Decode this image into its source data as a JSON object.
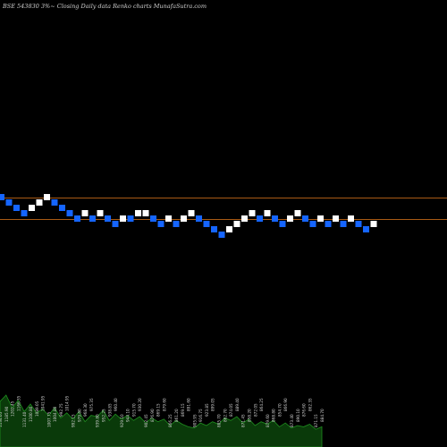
{
  "header": {
    "title": "BSE 543830 3%~ Closing Daily data Renko charts MunafaSutra.com"
  },
  "colors": {
    "background": "#000000",
    "up_brick": "#ffffff",
    "down_brick": "#1565ff",
    "reference_line": "#a85a14",
    "volume_fill": "#0a3a0a",
    "volume_stroke": "#1f8f1f"
  },
  "chart_data": {
    "type": "renko",
    "title": "BSE 543830 3%~ Closing Daily data Renko charts MunafaSutra.com",
    "brick_size": "3%",
    "reference_levels": [
      "upper",
      "lower"
    ],
    "bricks": [
      {
        "dir": "down",
        "level": 0
      },
      {
        "dir": "down",
        "level": -1
      },
      {
        "dir": "down",
        "level": -2
      },
      {
        "dir": "down",
        "level": -3
      },
      {
        "dir": "up",
        "level": -2
      },
      {
        "dir": "up",
        "level": -1
      },
      {
        "dir": "up",
        "level": 0
      },
      {
        "dir": "down",
        "level": -1
      },
      {
        "dir": "down",
        "level": -2
      },
      {
        "dir": "down",
        "level": -3
      },
      {
        "dir": "down",
        "level": -4
      },
      {
        "dir": "up",
        "level": -3
      },
      {
        "dir": "down",
        "level": -4
      },
      {
        "dir": "up",
        "level": -3
      },
      {
        "dir": "down",
        "level": -4
      },
      {
        "dir": "down",
        "level": -5
      },
      {
        "dir": "up",
        "level": -4
      },
      {
        "dir": "down",
        "level": -4
      },
      {
        "dir": "up",
        "level": -3
      },
      {
        "dir": "up",
        "level": -3
      },
      {
        "dir": "down",
        "level": -4
      },
      {
        "dir": "down",
        "level": -5
      },
      {
        "dir": "up",
        "level": -4
      },
      {
        "dir": "down",
        "level": -5
      },
      {
        "dir": "up",
        "level": -4
      },
      {
        "dir": "up",
        "level": -3
      },
      {
        "dir": "down",
        "level": -4
      },
      {
        "dir": "down",
        "level": -5
      },
      {
        "dir": "down",
        "level": -6
      },
      {
        "dir": "down",
        "level": -7
      },
      {
        "dir": "up",
        "level": -6
      },
      {
        "dir": "up",
        "level": -5
      },
      {
        "dir": "up",
        "level": -4
      },
      {
        "dir": "up",
        "level": -3
      },
      {
        "dir": "down",
        "level": -4
      },
      {
        "dir": "up",
        "level": -3
      },
      {
        "dir": "down",
        "level": -4
      },
      {
        "dir": "down",
        "level": -5
      },
      {
        "dir": "up",
        "level": -4
      },
      {
        "dir": "up",
        "level": -3
      },
      {
        "dir": "down",
        "level": -4
      },
      {
        "dir": "down",
        "level": -5
      },
      {
        "dir": "up",
        "level": -4
      },
      {
        "dir": "down",
        "level": -5
      },
      {
        "dir": "up",
        "level": -4
      },
      {
        "dir": "down",
        "level": -5
      },
      {
        "dir": "up",
        "level": -4
      },
      {
        "dir": "down",
        "level": -5
      },
      {
        "dir": "down",
        "level": -6
      },
      {
        "dir": "up",
        "level": -5
      }
    ],
    "volume": {
      "values": [
        36,
        41,
        31,
        37,
        28,
        34,
        27,
        30,
        25,
        31,
        23,
        27,
        22,
        28,
        20,
        25,
        24,
        29,
        21,
        26,
        22,
        25,
        21,
        24,
        19,
        23,
        20,
        22,
        17,
        21,
        18,
        16,
        15,
        19,
        17,
        20,
        18,
        23,
        21,
        24,
        19,
        22,
        17,
        20,
        18,
        21,
        16,
        19,
        15,
        17,
        16,
        18,
        14,
        16
      ],
      "labels": [
        "1134.05",
        "1185.90",
        "1202.45",
        "1166.35",
        "1131.40",
        "1100.80",
        "1089.05",
        "1041.95",
        "1007.75",
        "1004.80",
        "992.75",
        "1014.95",
        "992.15",
        "979.80",
        "968.30",
        "975.35",
        "939.80",
        "952.25",
        "938.85",
        "960.40",
        "929.10",
        "944.10",
        "915.70",
        "930.20",
        "902.45",
        "876.90",
        "869.15",
        "879.60",
        "866.25",
        "861.20",
        "869.15",
        "891.60",
        "905.95",
        "916.75",
        "923.85",
        "899.05",
        "885.70",
        "862.70",
        "874.05",
        "889.40",
        "871.45",
        "858.20",
        "872.05",
        "864.25",
        "879.60",
        "868.80",
        "854.70",
        "866.90",
        "873.40",
        "890.10",
        "876.60",
        "862.35",
        "871.15",
        "884.70"
      ]
    }
  }
}
